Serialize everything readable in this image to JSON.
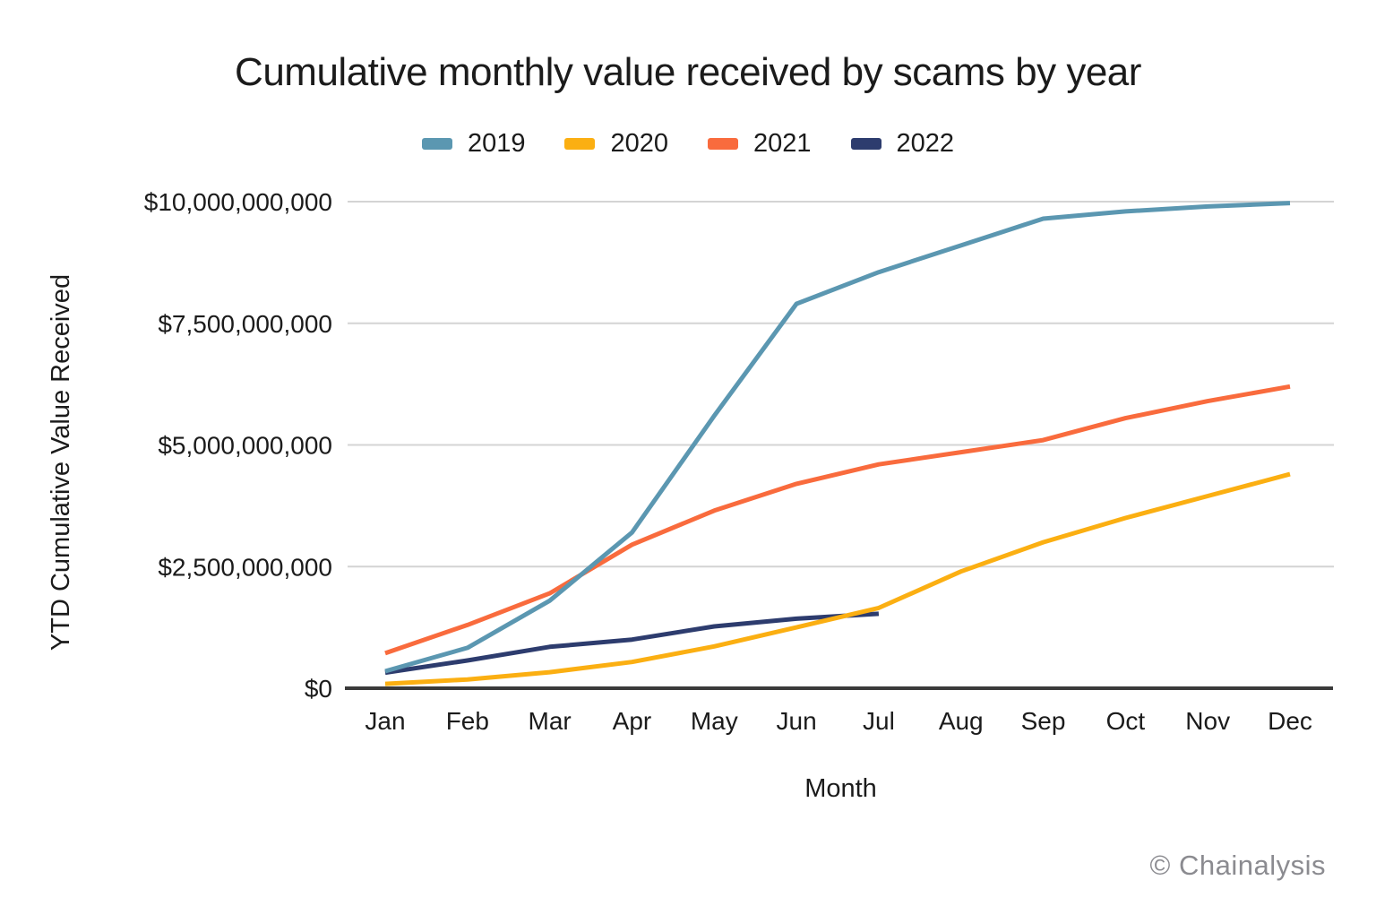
{
  "watermark": "© Chainalysis",
  "colors": {
    "background": "#ffffff",
    "text": "#1b1b1b",
    "gridline": "#d4d4d4",
    "axis_line": "#3a3a3a",
    "watermark": "#8b8b90"
  },
  "chart_data": {
    "type": "line",
    "title": "Cumulative monthly value received by scams by year",
    "xlabel": "Month",
    "ylabel": "YTD Cumulative Value Received",
    "unit": "USD",
    "grid": "horizontal",
    "legend_position": "top",
    "categories": [
      "Jan",
      "Feb",
      "Mar",
      "Apr",
      "May",
      "Jun",
      "Jul",
      "Aug",
      "Sep",
      "Oct",
      "Nov",
      "Dec"
    ],
    "ylim": [
      0,
      10000000000
    ],
    "yticks": [
      {
        "label": "$0",
        "value": 0
      },
      {
        "label": "$2,500,000,000",
        "value": 2500000000
      },
      {
        "label": "$5,000,000,000",
        "value": 5000000000
      },
      {
        "label": "$7,500,000,000",
        "value": 7500000000
      },
      {
        "label": "$10,000,000,000",
        "value": 10000000000
      }
    ],
    "series": [
      {
        "name": "2019",
        "color": "#5b97b1",
        "values": [
          350000000,
          830000000,
          1800000000,
          3200000000,
          5600000000,
          7900000000,
          8550000000,
          9100000000,
          9650000000,
          9800000000,
          9900000000,
          9970000000
        ]
      },
      {
        "name": "2020",
        "color": "#fbaf12",
        "values": [
          90000000,
          180000000,
          330000000,
          540000000,
          860000000,
          1250000000,
          1650000000,
          2400000000,
          3000000000,
          3500000000,
          3950000000,
          4400000000
        ]
      },
      {
        "name": "2021",
        "color": "#f96b3d",
        "values": [
          720000000,
          1300000000,
          1950000000,
          2950000000,
          3650000000,
          4200000000,
          4600000000,
          4850000000,
          5100000000,
          5550000000,
          5900000000,
          6200000000
        ]
      },
      {
        "name": "2022",
        "color": "#2d3c6e",
        "values": [
          320000000,
          570000000,
          850000000,
          1000000000,
          1270000000,
          1430000000,
          1530000000,
          null,
          null,
          null,
          null,
          null
        ]
      }
    ]
  }
}
